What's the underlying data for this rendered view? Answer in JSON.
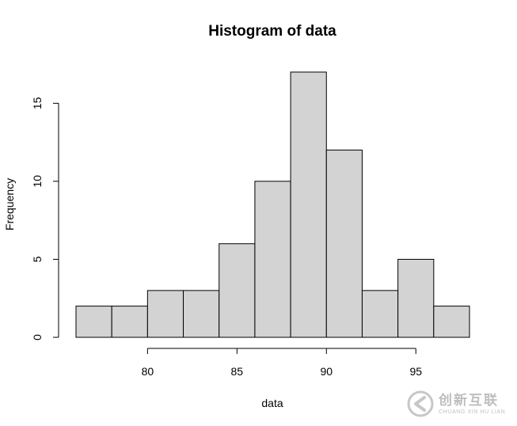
{
  "chart_data": {
    "type": "bar",
    "subtype": "histogram",
    "title": "Histogram of data",
    "xlabel": "data",
    "ylabel": "Frequency",
    "bins": [
      {
        "start": 76,
        "end": 78,
        "count": 2
      },
      {
        "start": 78,
        "end": 80,
        "count": 2
      },
      {
        "start": 80,
        "end": 82,
        "count": 3
      },
      {
        "start": 82,
        "end": 84,
        "count": 3
      },
      {
        "start": 84,
        "end": 86,
        "count": 6
      },
      {
        "start": 86,
        "end": 88,
        "count": 10
      },
      {
        "start": 88,
        "end": 90,
        "count": 17
      },
      {
        "start": 90,
        "end": 92,
        "count": 12
      },
      {
        "start": 92,
        "end": 94,
        "count": 3
      },
      {
        "start": 94,
        "end": 96,
        "count": 5
      },
      {
        "start": 96,
        "end": 98,
        "count": 2
      }
    ],
    "x_ticks": [
      "80",
      "85",
      "90",
      "95"
    ],
    "y_ticks": [
      "0",
      "5",
      "10",
      "15"
    ],
    "xlim": [
      76,
      98
    ],
    "ylim": [
      0,
      17
    ],
    "grid": false,
    "bar_color": "#d3d3d3",
    "edge_color": "#000000"
  },
  "watermark": {
    "text": "创新互联",
    "subtext": "CHUANG XIN HU LIAN",
    "icon": "brand-logo-icon"
  }
}
